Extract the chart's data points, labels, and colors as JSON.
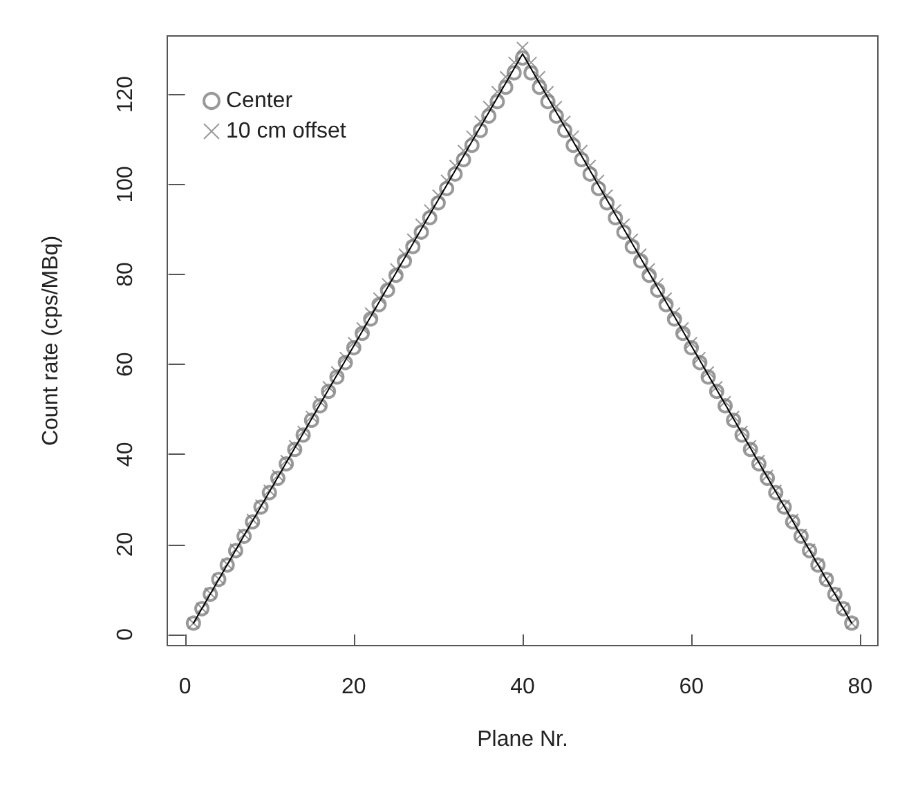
{
  "chart_data": {
    "type": "scatter",
    "xlabel": "Plane Nr.",
    "ylabel": "Count rate (cps/MBq)",
    "x": [
      1,
      2,
      3,
      4,
      5,
      6,
      7,
      8,
      9,
      10,
      11,
      12,
      13,
      14,
      15,
      16,
      17,
      18,
      19,
      20,
      21,
      22,
      23,
      24,
      25,
      26,
      27,
      28,
      29,
      30,
      31,
      32,
      33,
      34,
      35,
      36,
      37,
      38,
      39,
      40,
      41,
      42,
      43,
      44,
      45,
      46,
      47,
      48,
      49,
      50,
      51,
      52,
      53,
      54,
      55,
      56,
      57,
      58,
      59,
      60,
      61,
      62,
      63,
      64,
      65,
      66,
      67,
      68,
      69,
      70,
      71,
      72,
      73,
      74,
      75,
      76,
      77,
      78,
      79
    ],
    "series": [
      {
        "name": "Center",
        "color": "#7f7f7f",
        "marker": "circle",
        "values": [
          2.5,
          5.7,
          8.9,
          12.2,
          15.4,
          18.6,
          21.8,
          25.0,
          28.3,
          31.5,
          34.7,
          37.9,
          41.1,
          44.3,
          47.6,
          50.8,
          54.0,
          57.2,
          60.4,
          63.7,
          66.9,
          70.1,
          73.3,
          76.5,
          79.8,
          83.0,
          86.2,
          89.4,
          92.6,
          95.9,
          99.1,
          102.3,
          105.5,
          108.7,
          112.0,
          115.2,
          118.4,
          121.6,
          124.8,
          128.1,
          124.8,
          121.6,
          118.4,
          115.2,
          112.0,
          108.7,
          105.5,
          102.3,
          99.1,
          95.9,
          92.6,
          89.4,
          86.2,
          83.0,
          79.8,
          76.5,
          73.3,
          70.1,
          66.9,
          63.7,
          60.4,
          57.2,
          54.0,
          50.8,
          47.6,
          44.3,
          41.1,
          37.9,
          34.7,
          31.5,
          28.3,
          25.0,
          21.8,
          18.6,
          15.4,
          12.2,
          8.9,
          5.7,
          2.5
        ]
      },
      {
        "name": "10 cm offset",
        "color": "#7f7f7f",
        "marker": "cross",
        "values": [
          2.5,
          5.8,
          9.1,
          12.3,
          15.6,
          18.9,
          22.2,
          25.5,
          28.7,
          32.0,
          35.3,
          38.6,
          41.9,
          45.1,
          48.4,
          51.7,
          55.0,
          58.3,
          61.5,
          64.8,
          68.1,
          71.4,
          74.7,
          77.9,
          81.2,
          84.5,
          87.8,
          91.1,
          94.3,
          97.6,
          100.9,
          104.2,
          107.5,
          110.7,
          114.0,
          117.3,
          120.6,
          123.9,
          127.1,
          130.4,
          127.1,
          123.9,
          120.6,
          117.3,
          114.0,
          110.7,
          107.5,
          104.2,
          100.9,
          97.6,
          94.3,
          91.1,
          87.8,
          84.5,
          81.2,
          77.9,
          74.7,
          71.4,
          68.1,
          64.8,
          61.5,
          58.3,
          55.0,
          51.7,
          48.4,
          45.1,
          41.9,
          38.6,
          35.3,
          32.0,
          28.7,
          25.5,
          22.2,
          18.9,
          15.6,
          12.3,
          9.1,
          5.8,
          2.5
        ]
      },
      {
        "type": "line",
        "color": "#000000",
        "marker": "none",
        "x": [
          1,
          40,
          79
        ],
        "values": [
          2.5,
          129,
          2.5
        ]
      }
    ],
    "xlim": [
      -2.1,
      82.1
    ],
    "ylim": [
      -2.5,
      133
    ],
    "xticks": [
      0,
      20,
      40,
      60,
      80
    ],
    "yticks": [
      0,
      20,
      40,
      60,
      80,
      100,
      120
    ],
    "grid": false,
    "legend": "top left"
  }
}
